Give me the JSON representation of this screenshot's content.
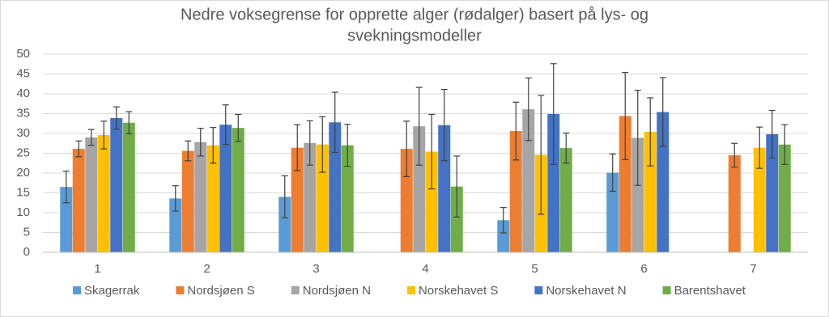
{
  "chart_data": {
    "type": "bar",
    "title": [
      "Nedre voksegrense for opprette alger (rødalger) basert på lys- og",
      "svekningsmodeller"
    ],
    "categories": [
      "1",
      "2",
      "3",
      "4",
      "5",
      "6",
      "7"
    ],
    "series": [
      {
        "name": "Skagerrak",
        "color": "#5b9bd5",
        "values": [
          16.5,
          13.6,
          14,
          null,
          8.1,
          20.1,
          null
        ],
        "errors": [
          4,
          3.2,
          5.3,
          null,
          3.2,
          4.7,
          null
        ]
      },
      {
        "name": "Nordsjøen S",
        "color": "#ed7d31",
        "values": [
          26.1,
          25.6,
          26.4,
          26.1,
          30.6,
          34.4,
          24.5
        ],
        "errors": [
          2,
          2.5,
          5.8,
          7,
          7.3,
          11,
          3
        ]
      },
      {
        "name": "Nordsjøen N",
        "color": "#a5a5a5",
        "values": [
          29,
          27.8,
          27.6,
          31.8,
          36.1,
          28.9,
          null
        ],
        "errors": [
          2,
          3.5,
          5.6,
          9.8,
          7.9,
          12,
          null
        ]
      },
      {
        "name": "Norskehavet S",
        "color": "#ffc000",
        "values": [
          29.6,
          27,
          27.2,
          25.4,
          24.6,
          30.4,
          26.4
        ],
        "errors": [
          3.5,
          4.5,
          7,
          9.4,
          15,
          8.6,
          5.2
        ]
      },
      {
        "name": "Norskehavet N",
        "color": "#4472c4",
        "values": [
          33.9,
          32.2,
          32.8,
          32.1,
          34.9,
          35.4,
          29.8
        ],
        "errors": [
          2.8,
          5,
          7.6,
          9,
          12.7,
          8.7,
          6
        ]
      },
      {
        "name": "Barentshavet",
        "color": "#70ad47",
        "values": [
          32.7,
          31.4,
          27,
          16.6,
          26.3,
          null,
          27.2
        ],
        "errors": [
          2.8,
          3.4,
          5.3,
          7.7,
          3.8,
          null,
          5
        ]
      }
    ],
    "ylim": [
      0,
      50
    ],
    "yticks": [
      0,
      5,
      10,
      15,
      20,
      25,
      30,
      35,
      40,
      45,
      50
    ],
    "grid": true,
    "legend": "bottom"
  }
}
